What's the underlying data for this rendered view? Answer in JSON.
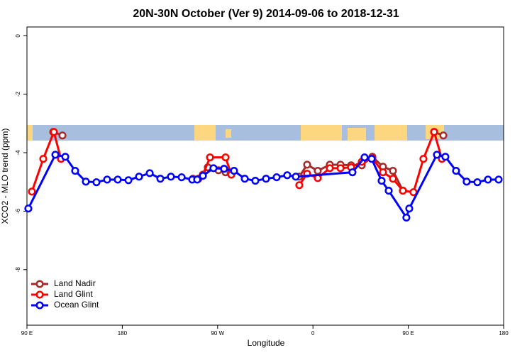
{
  "chart_data": {
    "type": "line",
    "title": "20N-30N October (Ver 9)   2014-09-06 to 2018-12-31",
    "x_label": "Longitude",
    "y_label": "XCO2 - MLO trend (ppm)",
    "xlim": [
      90,
      540
    ],
    "ylim": [
      -9.9,
      0.3
    ],
    "xticks": [
      {
        "value": 90,
        "label": "90 E"
      },
      {
        "value": 180,
        "label": "180"
      },
      {
        "value": 270,
        "label": "90 W"
      },
      {
        "value": 360,
        "label": "0"
      },
      {
        "value": 450,
        "label": "90 E"
      },
      {
        "value": 540,
        "label": "180"
      }
    ],
    "yticks": [
      0,
      -2,
      -4,
      -6,
      -8
    ],
    "legend": "bottom-left",
    "series": [
      {
        "name": "Land Nadir",
        "color": "#a52a2a",
        "x": [
          114.8,
          123.5,
          null,
          246.7,
          252.0,
          260.7,
          270.8,
          277.5,
          282.2,
          null,
          347.1,
          354.5,
          364.5,
          375.9,
          386.0,
          396.0,
          406.1,
          416.1,
          426.1,
          435.5,
          444.9,
          null,
          474.4,
          483.1
        ],
        "values": [
          -3.29,
          -3.41,
          null,
          -4.89,
          -4.89,
          -4.5,
          -4.6,
          -4.67,
          -4.7,
          null,
          -4.82,
          -4.41,
          -4.62,
          -4.41,
          -4.41,
          -4.43,
          -4.43,
          -4.14,
          -4.48,
          -4.62,
          -5.3,
          null,
          -3.29,
          -3.41
        ]
      },
      {
        "name": "Land Glint",
        "color": "#ff0000",
        "x": [
          94.7,
          105.4,
          115.4,
          122.1,
          null,
          256.1,
          262.8,
          277.5,
          282.9,
          null,
          347.1,
          354.5,
          364.5,
          375.9,
          386.0,
          396.0,
          406.1,
          416.1,
          426.1,
          435.5,
          444.9,
          454.9,
          464.3,
          474.4,
          481.7
        ],
        "values": [
          -5.33,
          -4.21,
          -3.29,
          -4.21,
          null,
          -4.75,
          -4.16,
          -4.16,
          -4.75,
          null,
          -5.11,
          -4.72,
          -4.87,
          -4.53,
          -4.53,
          -4.5,
          -4.31,
          -4.19,
          -4.67,
          -4.89,
          -5.3,
          -5.35,
          -4.21,
          -3.29,
          -4.21
        ]
      },
      {
        "name": "Ocean Glint",
        "color": "#0000ff",
        "x": [
          91.3,
          116.8,
          126.2,
          135.5,
          145.6,
          155.6,
          165.7,
          175.7,
          185.8,
          195.8,
          205.9,
          215.9,
          225.9,
          236.0,
          246.0,
          250.7,
          256.1,
          266.1,
          276.1,
          285.5,
          295.6,
          305.6,
          315.7,
          325.7,
          335.7,
          343.8,
          397.3,
          408.7,
          415.4,
          424.8,
          431.5,
          448.2,
          450.9,
          477.0,
          485.0,
          495.1,
          505.1,
          515.2,
          525.2,
          535.3
        ],
        "values": [
          -5.91,
          -4.07,
          -4.14,
          -4.62,
          -4.99,
          -5.01,
          -4.92,
          -4.92,
          -4.94,
          -4.82,
          -4.7,
          -4.89,
          -4.82,
          -4.84,
          -4.92,
          -4.92,
          -4.79,
          -4.53,
          -4.55,
          -4.62,
          -4.89,
          -4.96,
          -4.89,
          -4.84,
          -4.77,
          -4.82,
          -4.67,
          -4.16,
          -4.21,
          -4.96,
          -5.3,
          -6.22,
          -5.91,
          -4.07,
          -4.14,
          -4.62,
          -4.99,
          -5.01,
          -4.92,
          -4.92
        ]
      }
    ]
  }
}
